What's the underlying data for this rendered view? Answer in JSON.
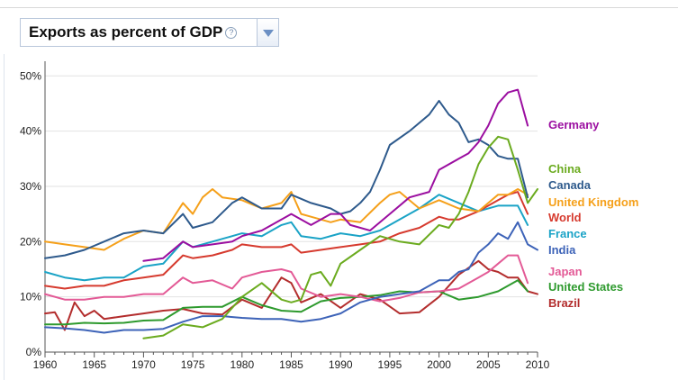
{
  "header": {
    "title": "Exports as percent of GDP",
    "help_glyph": "?"
  },
  "chart_data": {
    "type": "line",
    "title": "Exports as percent of GDP",
    "xlabel": "",
    "ylabel": "",
    "xlim": [
      1960,
      2010
    ],
    "ylim": [
      0,
      52
    ],
    "x_ticks": [
      1960,
      1965,
      1970,
      1975,
      1980,
      1985,
      1990,
      1995,
      2000,
      2005,
      2010
    ],
    "y_ticks": [
      0,
      10,
      20,
      30,
      40,
      50
    ],
    "y_tick_labels": [
      "0%",
      "10%",
      "20%",
      "30%",
      "40%",
      "50%"
    ],
    "grid": true,
    "legend_placement": "right",
    "series": [
      {
        "name": "Germany",
        "color": "#9b0ea0",
        "x": [
          1970,
          1972,
          1974,
          1975,
          1977,
          1979,
          1980,
          1982,
          1984,
          1985,
          1987,
          1989,
          1990,
          1991,
          1993,
          1995,
          1997,
          1999,
          2000,
          2002,
          2003,
          2004,
          2005,
          2006,
          2007,
          2008,
          2009
        ],
        "y": [
          16.5,
          17,
          20,
          19,
          19.5,
          20,
          21,
          22,
          24,
          25,
          23,
          25,
          25,
          23,
          22,
          25,
          28,
          29,
          33,
          35,
          36,
          38,
          41,
          45,
          47,
          47.5,
          41
        ]
      },
      {
        "name": "China",
        "color": "#6bab1f",
        "x": [
          1970,
          1972,
          1974,
          1976,
          1978,
          1980,
          1982,
          1984,
          1985,
          1986,
          1987,
          1988,
          1989,
          1990,
          1992,
          1994,
          1996,
          1998,
          2000,
          2001,
          2002,
          2003,
          2004,
          2005,
          2006,
          2007,
          2008,
          2009,
          2010
        ],
        "y": [
          2.5,
          3,
          5,
          4.5,
          6,
          10,
          12.5,
          9.5,
          9,
          9.5,
          14,
          14.5,
          12,
          16,
          18.5,
          21,
          20,
          19.5,
          23,
          22.5,
          25,
          29,
          34,
          37,
          39,
          38.5,
          33,
          27,
          29.5
        ]
      },
      {
        "name": "Canada",
        "color": "#2e5a8c",
        "x": [
          1960,
          1962,
          1964,
          1966,
          1968,
          1970,
          1972,
          1974,
          1975,
          1977,
          1979,
          1980,
          1982,
          1984,
          1985,
          1987,
          1989,
          1990,
          1991,
          1992,
          1993,
          1994,
          1995,
          1997,
          1999,
          2000,
          2001,
          2002,
          2003,
          2004,
          2005,
          2006,
          2007,
          2008,
          2009
        ],
        "y": [
          17,
          17.5,
          18.5,
          20,
          21.5,
          22,
          21.5,
          25,
          22.5,
          23.5,
          27,
          28,
          26,
          26,
          28.5,
          27,
          26,
          25,
          25.5,
          27,
          29,
          33,
          37.5,
          40,
          43,
          45.5,
          43,
          41.5,
          38,
          38.5,
          37.5,
          35.5,
          35,
          35,
          28
        ]
      },
      {
        "name": "United Kingdom",
        "color": "#f5a01a",
        "x": [
          1960,
          1962,
          1964,
          1966,
          1968,
          1970,
          1972,
          1974,
          1975,
          1976,
          1977,
          1978,
          1980,
          1982,
          1984,
          1985,
          1986,
          1987,
          1989,
          1990,
          1992,
          1994,
          1995,
          1996,
          1998,
          2000,
          2002,
          2004,
          2005,
          2006,
          2007,
          2008,
          2009
        ],
        "y": [
          20,
          19.5,
          19,
          18.5,
          20.5,
          22,
          21.5,
          27,
          25,
          28,
          29.5,
          28,
          27.5,
          26,
          27,
          29,
          25,
          24.5,
          23.5,
          24,
          23.5,
          27,
          28.5,
          29,
          26,
          27.5,
          26,
          25.5,
          27,
          28.5,
          28.5,
          29.5,
          28.5
        ]
      },
      {
        "name": "World",
        "color": "#d63a2e",
        "x": [
          1960,
          1962,
          1964,
          1966,
          1968,
          1970,
          1972,
          1974,
          1975,
          1977,
          1979,
          1980,
          1982,
          1984,
          1985,
          1986,
          1988,
          1990,
          1992,
          1994,
          1996,
          1998,
          2000,
          2001,
          2002,
          2004,
          2005,
          2006,
          2007,
          2008,
          2009
        ],
        "y": [
          12,
          11.5,
          12,
          12,
          13,
          13.5,
          14,
          17.5,
          17,
          17.5,
          18.5,
          19.5,
          19,
          19,
          19.5,
          18,
          18.5,
          19,
          19.5,
          20,
          21.5,
          22.5,
          24.5,
          24,
          24,
          25.5,
          26.5,
          27.5,
          28.5,
          29,
          25
        ]
      },
      {
        "name": "France",
        "color": "#1aa3c6",
        "x": [
          1960,
          1962,
          1964,
          1966,
          1968,
          1970,
          1972,
          1974,
          1975,
          1977,
          1979,
          1980,
          1982,
          1984,
          1985,
          1986,
          1988,
          1990,
          1992,
          1994,
          1996,
          1998,
          2000,
          2002,
          2004,
          2006,
          2008,
          2009
        ],
        "y": [
          14.5,
          13.5,
          13,
          13.5,
          13.5,
          15.5,
          16,
          20,
          19,
          20,
          21,
          21.5,
          21,
          23,
          23.5,
          21,
          20.5,
          21.5,
          21,
          22,
          24,
          26,
          28.5,
          27,
          25.5,
          26.5,
          26.5,
          23
        ]
      },
      {
        "name": "India",
        "color": "#3d63b8",
        "x": [
          1960,
          1962,
          1964,
          1966,
          1968,
          1970,
          1972,
          1974,
          1976,
          1978,
          1980,
          1982,
          1984,
          1986,
          1988,
          1990,
          1992,
          1994,
          1996,
          1998,
          2000,
          2001,
          2002,
          2003,
          2004,
          2005,
          2006,
          2007,
          2008,
          2009,
          2010
        ],
        "y": [
          4.5,
          4.3,
          4,
          3.5,
          4,
          4,
          4.2,
          5.5,
          6.5,
          6.5,
          6.2,
          6,
          6,
          5.5,
          6,
          7,
          9,
          10,
          10.5,
          11,
          13,
          13,
          14.5,
          15,
          18,
          19.5,
          21.5,
          20.5,
          23.5,
          19.5,
          18.5
        ]
      },
      {
        "name": "Japan",
        "color": "#e35a96",
        "x": [
          1960,
          1962,
          1964,
          1966,
          1968,
          1970,
          1972,
          1974,
          1975,
          1977,
          1979,
          1980,
          1982,
          1984,
          1985,
          1986,
          1988,
          1990,
          1992,
          1994,
          1996,
          1998,
          2000,
          2002,
          2004,
          2005,
          2006,
          2007,
          2008,
          2009
        ],
        "y": [
          10.5,
          9.5,
          9.5,
          10,
          10,
          10.5,
          10.5,
          13.5,
          12.5,
          13,
          11.5,
          13.5,
          14.5,
          15,
          14.5,
          11.5,
          10,
          10.5,
          10,
          9.2,
          9.8,
          10.8,
          11,
          11.5,
          13.5,
          14.5,
          16,
          17.5,
          17.5,
          12.5
        ]
      },
      {
        "name": "United States",
        "color": "#2e9a2e",
        "x": [
          1960,
          1962,
          1964,
          1966,
          1968,
          1970,
          1972,
          1974,
          1976,
          1978,
          1980,
          1982,
          1984,
          1986,
          1988,
          1990,
          1992,
          1994,
          1996,
          1998,
          2000,
          2002,
          2004,
          2006,
          2008,
          2009
        ],
        "y": [
          5,
          5,
          5.3,
          5.2,
          5.3,
          5.7,
          5.8,
          8,
          8.2,
          8.2,
          10,
          8.5,
          7.5,
          7.3,
          9.2,
          9.8,
          10,
          10.3,
          11,
          10.8,
          11,
          9.5,
          10,
          11,
          13,
          11
        ]
      },
      {
        "name": "Brazil",
        "color": "#b32d2d",
        "x": [
          1960,
          1961,
          1962,
          1963,
          1964,
          1965,
          1966,
          1968,
          1970,
          1972,
          1974,
          1976,
          1978,
          1980,
          1982,
          1984,
          1985,
          1986,
          1988,
          1990,
          1992,
          1994,
          1996,
          1998,
          2000,
          2002,
          2004,
          2005,
          2006,
          2007,
          2008,
          2009,
          2010
        ],
        "y": [
          7,
          7.2,
          4,
          9,
          6.5,
          7.5,
          6,
          6.5,
          7,
          7.5,
          7.8,
          7,
          6.8,
          9.5,
          8,
          13.5,
          12.5,
          9,
          10.5,
          8,
          10.5,
          9.5,
          7,
          7.2,
          10,
          14,
          16.5,
          15,
          14.5,
          13.5,
          13.5,
          11,
          10.5
        ]
      }
    ]
  }
}
